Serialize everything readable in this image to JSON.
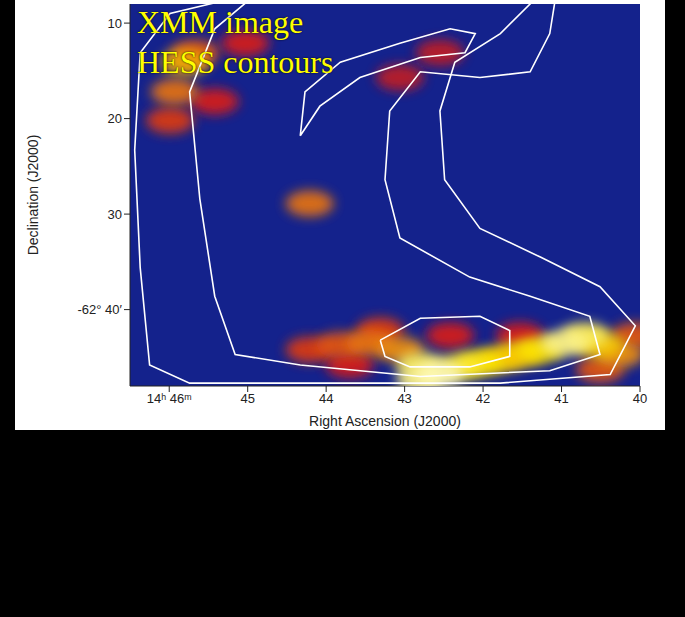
{
  "chart_data": {
    "type": "image",
    "annotations": [
      "XMM image",
      "HESS contours"
    ],
    "x_label": "Right Ascension (J2000)",
    "y_label": "Declination (J2000)",
    "xlim": [
      46.5,
      40
    ],
    "xticks": [
      {
        "value": 46,
        "label": "14ʰ 46ᵐ"
      },
      45,
      44,
      43,
      42,
      41,
      40
    ],
    "ylim": [
      48,
      8
    ],
    "yticks": [
      10,
      20,
      30,
      {
        "value": 40,
        "label": "-62° 40′"
      }
    ],
    "xray_emission": {
      "x": [
        44.21,
        43.7,
        43.31,
        42.42,
        41.53,
        43.82,
        43.44,
        40.51,
        40.06,
        40.26,
        43.06,
        41.78,
        41.53,
        40.51,
        42.04,
        41.27,
        42.29,
        40.7,
        42.8,
        40.96,
        42.8,
        42.55,
        45.03,
        45.42,
        45.99,
        43.06,
        42.55,
        44.21,
        45.93,
        45.67,
        45.8
      ],
      "y": [
        44.2,
        45.8,
        42.2,
        42.7,
        42.7,
        43.7,
        43.5,
        46.3,
        42.7,
        44.7,
        44.2,
        45.2,
        44.7,
        43.7,
        45.6,
        44.2,
        46.0,
        42.7,
        45.8,
        43.5,
        47.3,
        46.8,
        12.1,
        18.2,
        20.2,
        15.7,
        13.1,
        28.9,
        17.2,
        13.1,
        14.1
      ],
      "intensity": [
        0.45,
        0.4,
        0.45,
        0.4,
        0.4,
        0.5,
        0.55,
        0.5,
        0.5,
        0.6,
        0.6,
        0.7,
        0.7,
        0.7,
        0.75,
        0.75,
        0.8,
        0.85,
        0.85,
        0.9,
        0.9,
        0.95,
        0.4,
        0.4,
        0.45,
        0.35,
        0.35,
        0.55,
        0.55,
        0.5,
        0.65
      ]
    },
    "contours": [
      {
        "color": "#ffffff",
        "x": [
          45.23,
          45.99,
          46.37,
          46.44,
          46.37,
          46.25,
          45.74,
          43.7,
          41.78,
          40.38,
          40.06,
          40.51,
          41.27,
          42.04,
          42.49,
          42.55,
          42.36,
          41.78,
          41.34
        ],
        "y": [
          7.5,
          9.0,
          13.1,
          23.3,
          35.6,
          45.8,
          47.7,
          47.7,
          47.7,
          46.8,
          41.7,
          37.6,
          34.5,
          31.5,
          26.4,
          19.2,
          14.1,
          11.1,
          7.5
        ]
      },
      {
        "color": "#ffffff",
        "x": [
          44.97,
          45.42,
          45.74,
          45.61,
          45.42,
          45.16,
          44.33,
          42.8,
          41.15,
          40.51,
          40.64,
          41.4,
          42.17,
          43.06,
          43.25,
          43.19,
          42.8,
          42.04,
          41.4,
          41.15,
          41.08
        ],
        "y": [
          7.5,
          10.6,
          17.2,
          28.4,
          38.6,
          44.7,
          45.8,
          47.0,
          46.4,
          44.7,
          40.7,
          38.6,
          36.6,
          32.5,
          26.4,
          19.2,
          15.1,
          15.7,
          15.1,
          11.1,
          7.5
        ]
      },
      {
        "color": "#ffffff",
        "x": [
          44.33,
          44.27,
          43.82,
          43.06,
          42.42,
          42.1,
          42.23,
          42.8,
          43.57,
          44.08,
          44.33
        ],
        "y": [
          21.8,
          17.2,
          14.1,
          12.1,
          10.6,
          11.1,
          13.1,
          13.6,
          15.7,
          18.7,
          21.8
        ]
      },
      {
        "color": "#ffffff",
        "x": [
          43.31,
          42.8,
          42.04,
          41.66,
          41.66,
          42.17,
          42.93,
          43.25,
          43.31
        ],
        "y": [
          43.2,
          40.9,
          40.7,
          42.2,
          44.9,
          46.0,
          46.0,
          44.9,
          43.2
        ]
      }
    ]
  }
}
